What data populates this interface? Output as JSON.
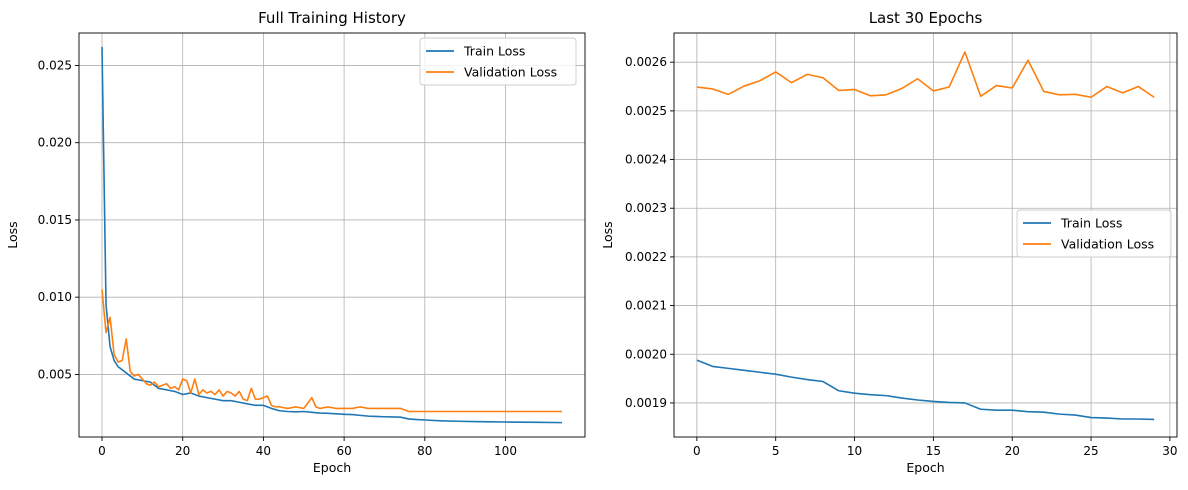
{
  "colors": {
    "train": "#1f77b4",
    "validation": "#ff7f0e",
    "grid": "#b0b0b0"
  },
  "chart_data": [
    {
      "type": "line",
      "title": "Full Training History",
      "xlabel": "Epoch",
      "ylabel": "Loss",
      "xlim": [
        -5.7,
        119.7
      ],
      "ylim": [
        0.00095,
        0.0271
      ],
      "xticks": [
        0,
        20,
        40,
        60,
        80,
        100
      ],
      "xtick_labels": [
        "0",
        "20",
        "40",
        "60",
        "80",
        "100"
      ],
      "yticks": [
        0.005,
        0.01,
        0.015,
        0.02,
        0.025
      ],
      "ytick_labels": [
        "0.005",
        "0.010",
        "0.015",
        "0.020",
        "0.025"
      ],
      "grid": true,
      "legend_position": "top-right",
      "series": [
        {
          "name": "Train Loss",
          "color": "#1f77b4",
          "x": [
            0,
            1,
            2,
            3,
            4,
            5,
            6,
            8,
            10,
            12,
            14,
            16,
            18,
            20,
            22,
            24,
            26,
            28,
            30,
            32,
            34,
            36,
            38,
            40,
            42,
            44,
            46,
            48,
            50,
            52,
            54,
            56,
            58,
            60,
            62,
            64,
            66,
            68,
            70,
            72,
            74,
            76,
            78,
            80,
            84,
            88,
            92,
            96,
            100,
            104,
            108,
            114
          ],
          "y": [
            0.0262,
            0.0095,
            0.0068,
            0.0059,
            0.0055,
            0.0053,
            0.0051,
            0.0047,
            0.0046,
            0.0045,
            0.0041,
            0.004,
            0.0039,
            0.0037,
            0.0038,
            0.0036,
            0.0035,
            0.0034,
            0.0033,
            0.0033,
            0.0032,
            0.0031,
            0.003,
            0.003,
            0.0028,
            0.00265,
            0.0026,
            0.00258,
            0.0026,
            0.00255,
            0.0025,
            0.00248,
            0.00245,
            0.00242,
            0.0024,
            0.00235,
            0.0023,
            0.00228,
            0.00226,
            0.00225,
            0.00223,
            0.00212,
            0.00208,
            0.00205,
            0.002,
            0.00197,
            0.00195,
            0.00193,
            0.00192,
            0.00191,
            0.0019,
            0.00188
          ]
        },
        {
          "name": "Validation Loss",
          "color": "#ff7f0e",
          "x": [
            0,
            1,
            2,
            3,
            4,
            5,
            6,
            7,
            8,
            9,
            10,
            11,
            12,
            13,
            14,
            15,
            16,
            17,
            18,
            19,
            20,
            21,
            22,
            23,
            24,
            25,
            26,
            27,
            28,
            29,
            30,
            31,
            32,
            33,
            34,
            35,
            36,
            37,
            38,
            39,
            40,
            41,
            42,
            43,
            44,
            46,
            48,
            50,
            52,
            53,
            54,
            56,
            58,
            60,
            62,
            64,
            66,
            68,
            70,
            72,
            74,
            76,
            78,
            80,
            84,
            88,
            92,
            96,
            100,
            101,
            102,
            104,
            106,
            108,
            110,
            114
          ],
          "y": [
            0.0105,
            0.0077,
            0.0087,
            0.0063,
            0.0058,
            0.0059,
            0.0073,
            0.0052,
            0.0049,
            0.005,
            0.0047,
            0.0044,
            0.0043,
            0.0045,
            0.0042,
            0.0043,
            0.0044,
            0.0041,
            0.0042,
            0.004,
            0.0047,
            0.0046,
            0.0038,
            0.0047,
            0.0037,
            0.004,
            0.0038,
            0.0039,
            0.0037,
            0.004,
            0.0036,
            0.0039,
            0.0038,
            0.0036,
            0.0039,
            0.0034,
            0.0033,
            0.0041,
            0.0034,
            0.0034,
            0.0035,
            0.0036,
            0.003,
            0.0029,
            0.0029,
            0.0028,
            0.0029,
            0.0028,
            0.0035,
            0.0029,
            0.0028,
            0.0029,
            0.0028,
            0.0028,
            0.0028,
            0.0029,
            0.0028,
            0.0028,
            0.0028,
            0.0028,
            0.0028,
            0.0026,
            0.0026,
            0.0026,
            0.0026,
            0.0026,
            0.0026,
            0.0026,
            0.0026,
            0.0026,
            0.0026,
            0.0026,
            0.0026,
            0.0026,
            0.0026,
            0.0026
          ]
        }
      ]
    },
    {
      "type": "line",
      "title": "Last 30 Epochs",
      "xlabel": "Epoch",
      "ylabel": "Loss",
      "xlim": [
        -1.45,
        30.45
      ],
      "ylim": [
        0.00183,
        0.00266
      ],
      "xticks": [
        0,
        5,
        10,
        15,
        20,
        25,
        30
      ],
      "xtick_labels": [
        "0",
        "5",
        "10",
        "15",
        "20",
        "25",
        "30"
      ],
      "yticks": [
        0.0019,
        0.002,
        0.0021,
        0.0022,
        0.0023,
        0.0024,
        0.0025,
        0.0026
      ],
      "ytick_labels": [
        "0.0019",
        "0.0020",
        "0.0021",
        "0.0022",
        "0.0023",
        "0.0024",
        "0.0025",
        "0.0026"
      ],
      "grid": true,
      "legend_position": "center-right",
      "series": [
        {
          "name": "Train Loss",
          "color": "#1f77b4",
          "x": [
            0,
            1,
            2,
            3,
            4,
            5,
            6,
            7,
            8,
            9,
            10,
            11,
            12,
            13,
            14,
            15,
            16,
            17,
            18,
            19,
            20,
            21,
            22,
            23,
            24,
            25,
            26,
            27,
            28,
            29
          ],
          "y": [
            0.001988,
            0.001975,
            0.001971,
            0.001967,
            0.001963,
            0.001959,
            0.001953,
            0.001948,
            0.001944,
            0.001925,
            0.00192,
            0.001917,
            0.001915,
            0.00191,
            0.001906,
            0.001903,
            0.001901,
            0.0019,
            0.001887,
            0.001885,
            0.001885,
            0.001882,
            0.001881,
            0.001877,
            0.001875,
            0.00187,
            0.001869,
            0.001867,
            0.001867,
            0.001866
          ]
        },
        {
          "name": "Validation Loss",
          "color": "#ff7f0e",
          "x": [
            0,
            1,
            2,
            3,
            4,
            5,
            6,
            7,
            8,
            9,
            10,
            11,
            12,
            13,
            14,
            15,
            16,
            17,
            18,
            19,
            20,
            21,
            22,
            23,
            24,
            25,
            26,
            27,
            28,
            29
          ],
          "y": [
            0.002549,
            0.002545,
            0.002534,
            0.002551,
            0.002562,
            0.00258,
            0.002558,
            0.002575,
            0.002568,
            0.002542,
            0.002544,
            0.002531,
            0.002533,
            0.002546,
            0.002566,
            0.002541,
            0.002549,
            0.002621,
            0.00253,
            0.002552,
            0.002547,
            0.002604,
            0.00254,
            0.002533,
            0.002534,
            0.002528,
            0.00255,
            0.002537,
            0.00255,
            0.002528
          ]
        }
      ]
    }
  ]
}
